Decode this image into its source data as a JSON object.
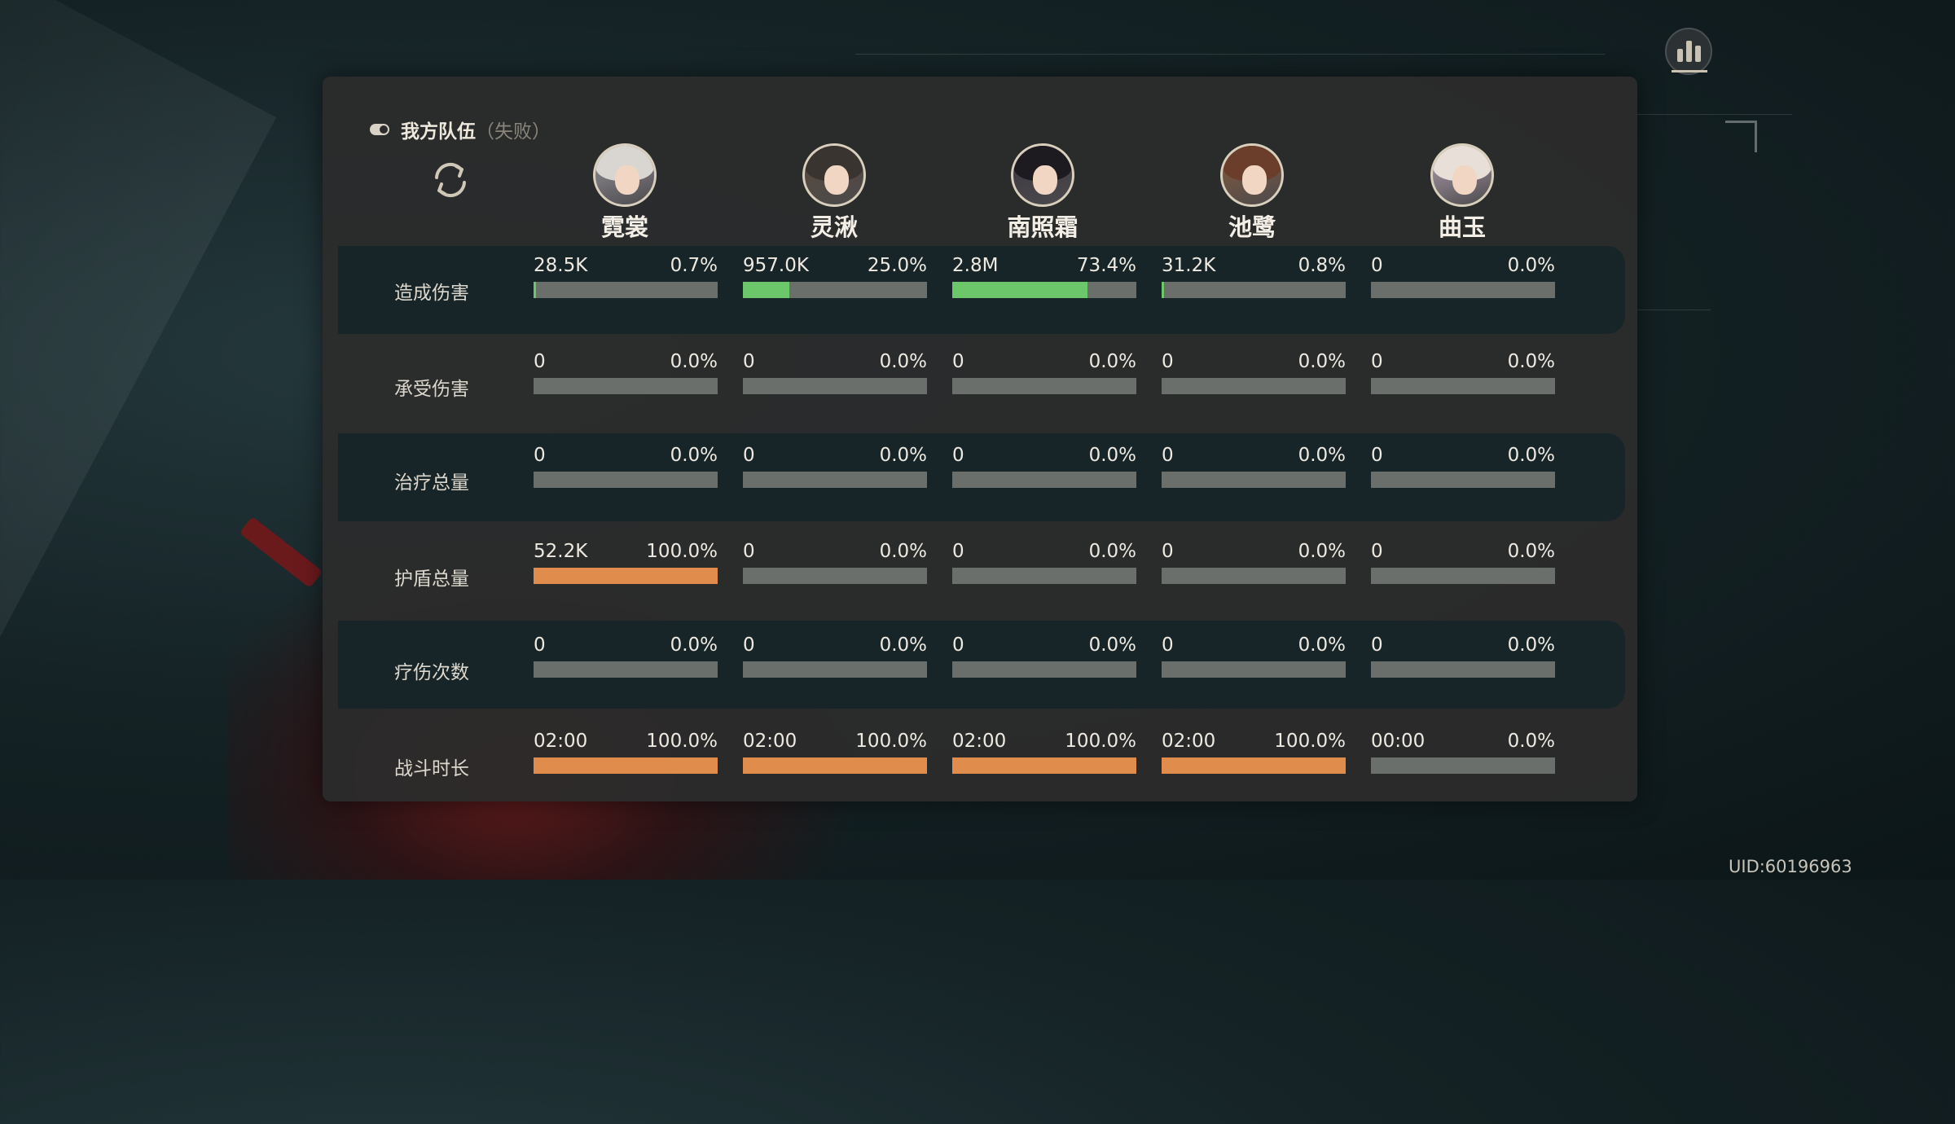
{
  "header": {
    "title": "我方队伍",
    "status": "（失败）"
  },
  "characters": [
    {
      "name": "霓裳"
    },
    {
      "name": "灵湫"
    },
    {
      "name": "南照霜"
    },
    {
      "name": "池鹭"
    },
    {
      "name": "曲玉"
    }
  ],
  "rows": [
    {
      "label": "造成伤害",
      "bar_color": "green",
      "cells": [
        {
          "value": "28.5K",
          "percent": "0.7%",
          "fraction": 0.007
        },
        {
          "value": "957.0K",
          "percent": "25.0%",
          "fraction": 0.25
        },
        {
          "value": "2.8M",
          "percent": "73.4%",
          "fraction": 0.734
        },
        {
          "value": "31.2K",
          "percent": "0.8%",
          "fraction": 0.008
        },
        {
          "value": "0",
          "percent": "0.0%",
          "fraction": 0
        }
      ]
    },
    {
      "label": "承受伤害",
      "bar_color": "green",
      "cells": [
        {
          "value": "0",
          "percent": "0.0%",
          "fraction": 0
        },
        {
          "value": "0",
          "percent": "0.0%",
          "fraction": 0
        },
        {
          "value": "0",
          "percent": "0.0%",
          "fraction": 0
        },
        {
          "value": "0",
          "percent": "0.0%",
          "fraction": 0
        },
        {
          "value": "0",
          "percent": "0.0%",
          "fraction": 0
        }
      ]
    },
    {
      "label": "治疗总量",
      "bar_color": "green",
      "cells": [
        {
          "value": "0",
          "percent": "0.0%",
          "fraction": 0
        },
        {
          "value": "0",
          "percent": "0.0%",
          "fraction": 0
        },
        {
          "value": "0",
          "percent": "0.0%",
          "fraction": 0
        },
        {
          "value": "0",
          "percent": "0.0%",
          "fraction": 0
        },
        {
          "value": "0",
          "percent": "0.0%",
          "fraction": 0
        }
      ]
    },
    {
      "label": "护盾总量",
      "bar_color": "orange",
      "cells": [
        {
          "value": "52.2K",
          "percent": "100.0%",
          "fraction": 1
        },
        {
          "value": "0",
          "percent": "0.0%",
          "fraction": 0
        },
        {
          "value": "0",
          "percent": "0.0%",
          "fraction": 0
        },
        {
          "value": "0",
          "percent": "0.0%",
          "fraction": 0
        },
        {
          "value": "0",
          "percent": "0.0%",
          "fraction": 0
        }
      ]
    },
    {
      "label": "疗伤次数",
      "bar_color": "green",
      "cells": [
        {
          "value": "0",
          "percent": "0.0%",
          "fraction": 0
        },
        {
          "value": "0",
          "percent": "0.0%",
          "fraction": 0
        },
        {
          "value": "0",
          "percent": "0.0%",
          "fraction": 0
        },
        {
          "value": "0",
          "percent": "0.0%",
          "fraction": 0
        },
        {
          "value": "0",
          "percent": "0.0%",
          "fraction": 0
        }
      ]
    },
    {
      "label": "战斗时长",
      "bar_color": "orange",
      "cells": [
        {
          "value": "02:00",
          "percent": "100.0%",
          "fraction": 1
        },
        {
          "value": "02:00",
          "percent": "100.0%",
          "fraction": 1
        },
        {
          "value": "02:00",
          "percent": "100.0%",
          "fraction": 1
        },
        {
          "value": "02:00",
          "percent": "100.0%",
          "fraction": 1
        },
        {
          "value": "00:00",
          "percent": "0.0%",
          "fraction": 0
        }
      ]
    }
  ],
  "uid": "UID:60196963",
  "icons": {
    "refresh": "refresh-icon",
    "stats": "bar-chart-icon",
    "toggle": "toggle-icon"
  },
  "colors": {
    "green": "#6cc76a",
    "orange": "#e08c4c",
    "track": "#6a6f6b"
  }
}
